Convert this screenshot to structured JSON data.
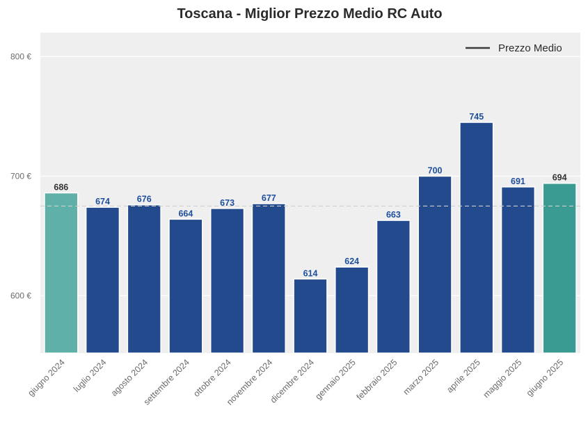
{
  "chart_data": {
    "type": "bar",
    "title": "Toscana - Miglior Prezzo Medio RC Auto",
    "xlabel": "",
    "ylabel": "",
    "categories": [
      "giugno 2024",
      "luglio 2024",
      "agosto 2024",
      "settembre 2024",
      "ottobre 2024",
      "novembre 2024",
      "dicembre 2024",
      "gennaio 2025",
      "febbraio 2025",
      "marzo 2025",
      "aprile 2025",
      "maggio 2025",
      "giugno 2025"
    ],
    "values": [
      686,
      674,
      676,
      664,
      673,
      677,
      614,
      624,
      663,
      700,
      745,
      691,
      694
    ],
    "value_labels": [
      "686",
      "674",
      "676",
      "664",
      "673",
      "677",
      "614",
      "624",
      "663",
      "700",
      "745",
      "691",
      "694"
    ],
    "bar_colors": [
      "#5fb0a8",
      "#234a8c",
      "#234a8c",
      "#234a8c",
      "#234a8c",
      "#234a8c",
      "#234a8c",
      "#234a8c",
      "#234a8c",
      "#234a8c",
      "#234a8c",
      "#234a8c",
      "#3a9b93"
    ],
    "label_colors": [
      "#333333",
      "#1d4f9c",
      "#1d4f9c",
      "#1d4f9c",
      "#1d4f9c",
      "#1d4f9c",
      "#1d4f9c",
      "#1d4f9c",
      "#1d4f9c",
      "#1d4f9c",
      "#1d4f9c",
      "#1d4f9c",
      "#333333"
    ],
    "ylim": [
      552,
      820
    ],
    "yticks": [
      600,
      700,
      800
    ],
    "ytick_labels": [
      "600 €",
      "700 €",
      "800 €"
    ],
    "reference_line": {
      "value": 675,
      "style": "dashed"
    },
    "legend": {
      "position": "top-right",
      "entries": [
        {
          "label": "Prezzo Medio",
          "kind": "line"
        }
      ]
    },
    "grid": true,
    "background": "#efefef"
  }
}
